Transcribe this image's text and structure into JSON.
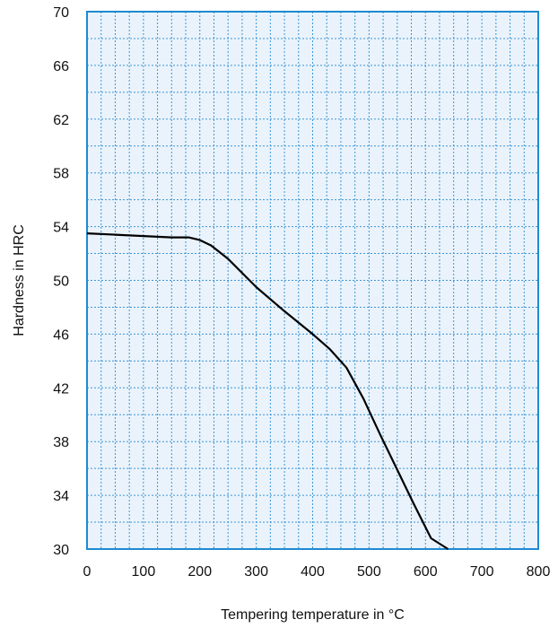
{
  "chart_data": {
    "type": "line",
    "title": "",
    "xlabel": "Tempering temperature in °C",
    "ylabel": "Hardness in HRC",
    "xlim": [
      0,
      800
    ],
    "ylim": [
      30,
      70
    ],
    "x_ticks": [
      0,
      100,
      200,
      300,
      400,
      500,
      600,
      700,
      800
    ],
    "y_ticks": [
      30,
      34,
      38,
      42,
      46,
      50,
      54,
      58,
      62,
      66,
      70
    ],
    "x_tick_labels": [
      "0",
      "100",
      "200",
      "300",
      "400",
      "500",
      "600",
      "700",
      "800"
    ],
    "y_tick_labels": [
      "30",
      "34",
      "38",
      "42",
      "46",
      "50",
      "54",
      "58",
      "62",
      "66",
      "70"
    ],
    "grid": true,
    "series": [
      {
        "x": [
          0,
          50,
          100,
          150,
          180,
          200,
          220,
          250,
          300,
          350,
          400,
          430,
          460,
          490,
          520,
          550,
          580,
          610,
          640
        ],
        "y": [
          53.5,
          53.4,
          53.3,
          53.2,
          53.2,
          53.0,
          52.6,
          51.6,
          49.5,
          47.7,
          46.0,
          44.9,
          43.5,
          41.2,
          38.5,
          35.9,
          33.3,
          30.8,
          29.0
        ]
      }
    ],
    "colors": {
      "axis": "#1e8ad1",
      "grid": "#3d95d6",
      "plot_background": "#eaf3fb",
      "curve": "#000000"
    }
  }
}
